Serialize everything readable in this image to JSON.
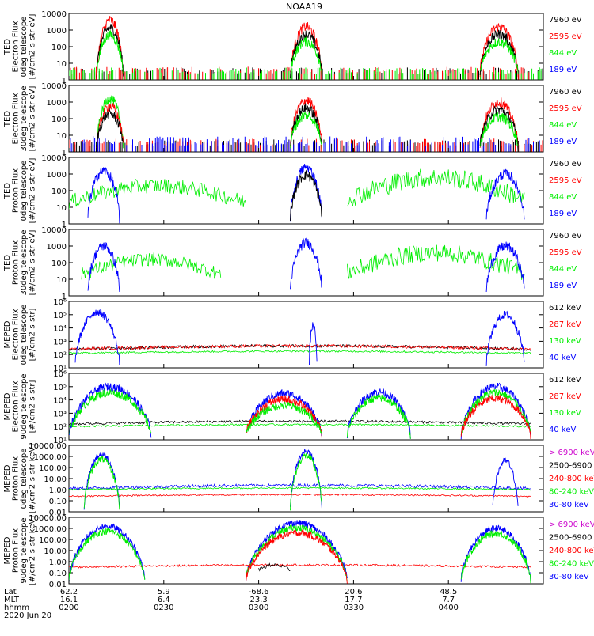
{
  "page": {
    "title": "NOAA19"
  },
  "colors": {
    "black": "#000000",
    "red": "#ff0000",
    "green": "#00ee00",
    "blue": "#0000ff",
    "magenta": "#cc00cc"
  },
  "chart_data": [
    {
      "type": "line",
      "ylabel": [
        "TED",
        "Electron Flux",
        "0deg telescope",
        "[#/cm2-s-str-eV]"
      ],
      "y_scale": "log",
      "ylim": [
        1,
        10000
      ],
      "y_ticks": [
        "10000",
        "1000",
        "100",
        "10",
        "1"
      ],
      "legend": [
        {
          "label": "7960 eV",
          "color": "black"
        },
        {
          "label": "2595 eV",
          "color": "red"
        },
        {
          "label": "844 eV",
          "color": "green"
        },
        {
          "label": "189 eV",
          "color": "blue"
        }
      ],
      "bursts": [
        {
          "t": [
            2.2,
            4.3
          ],
          "peak": 3.6,
          "series": [
            "red",
            "black",
            "green"
          ]
        },
        {
          "t": [
            17.5,
            20.0
          ],
          "peak": 3.2,
          "series": [
            "red",
            "black",
            "green"
          ]
        },
        {
          "t": [
            32.5,
            35.5
          ],
          "peak": 3.2,
          "series": [
            "red",
            "black",
            "green"
          ]
        }
      ],
      "noise": [
        {
          "series": "black",
          "level": 0.8
        },
        {
          "series": "red",
          "level": 0.9
        },
        {
          "series": "green",
          "level": 0.8
        }
      ]
    },
    {
      "type": "line",
      "ylabel": [
        "TED",
        "Electron Flux",
        "30deg telescope",
        "[#/cm2-s-str-eV]"
      ],
      "y_scale": "log",
      "ylim": [
        1,
        10000
      ],
      "y_ticks": [
        "10000",
        "1000",
        "100",
        "10",
        "1"
      ],
      "legend": [
        {
          "label": "7960 eV",
          "color": "black"
        },
        {
          "label": "2595 eV",
          "color": "red"
        },
        {
          "label": "844 eV",
          "color": "green"
        },
        {
          "label": "189 eV",
          "color": "blue"
        }
      ],
      "bursts": [
        {
          "t": [
            2.2,
            4.3
          ],
          "peak": 3.2,
          "series": [
            "green",
            "red",
            "black"
          ]
        },
        {
          "t": [
            17.5,
            20.0
          ],
          "peak": 3.1,
          "series": [
            "red",
            "black",
            "green"
          ]
        },
        {
          "t": [
            32.5,
            35.5
          ],
          "peak": 3.0,
          "series": [
            "red",
            "black",
            "green"
          ]
        }
      ],
      "noise": [
        {
          "series": "black",
          "level": 0.8
        },
        {
          "series": "red",
          "level": 0.9
        },
        {
          "series": "blue",
          "level": 1.2
        }
      ]
    },
    {
      "type": "line",
      "ylabel": [
        "TED",
        "Proton Flux",
        "0deg telescope",
        "[#/cm2-s-str-eV]"
      ],
      "y_scale": "log",
      "ylim": [
        1,
        10000
      ],
      "y_ticks": [
        "10000",
        "1000",
        "100",
        "10",
        "1"
      ],
      "legend": [
        {
          "label": "7960 eV",
          "color": "black"
        },
        {
          "label": "2595 eV",
          "color": "red"
        },
        {
          "label": "844 eV",
          "color": "green"
        },
        {
          "label": "189 eV",
          "color": "blue"
        }
      ],
      "bursts": [
        {
          "t": [
            1.5,
            4.0
          ],
          "peak": 3.2,
          "series": [
            "blue"
          ]
        },
        {
          "t": [
            17.5,
            20.0
          ],
          "peak": 3.4,
          "series": [
            "blue",
            "black"
          ]
        },
        {
          "t": [
            33.0,
            36.0
          ],
          "peak": 3.0,
          "series": [
            "blue"
          ]
        }
      ],
      "bands": [
        {
          "series": "green",
          "t": [
            0.0,
            14.0
          ],
          "base": 1.3,
          "amp": 1.0
        },
        {
          "series": "green",
          "t": [
            22.0,
            36.0
          ],
          "base": 1.5,
          "amp": 1.3
        }
      ]
    },
    {
      "type": "line",
      "ylabel": [
        "TED",
        "Proton Flux",
        "30deg telescope",
        "[#/cm2-s-str-eV]"
      ],
      "y_scale": "log",
      "ylim": [
        1,
        10000
      ],
      "y_ticks": [
        "10000",
        "1000",
        "100",
        "10",
        "1"
      ],
      "legend": [
        {
          "label": "7960 eV",
          "color": "black"
        },
        {
          "label": "2595 eV",
          "color": "red"
        },
        {
          "label": "844 eV",
          "color": "green"
        },
        {
          "label": "189 eV",
          "color": "blue"
        }
      ],
      "bursts": [
        {
          "t": [
            1.5,
            4.0
          ],
          "peak": 3.0,
          "series": [
            "blue"
          ]
        },
        {
          "t": [
            17.5,
            20.0
          ],
          "peak": 3.2,
          "series": [
            "blue"
          ]
        },
        {
          "t": [
            33.0,
            36.0
          ],
          "peak": 3.0,
          "series": [
            "blue"
          ]
        }
      ],
      "bands": [
        {
          "series": "green",
          "t": [
            1.0,
            12.0
          ],
          "base": 1.3,
          "amp": 0.9
        },
        {
          "series": "green",
          "t": [
            22.0,
            36.0
          ],
          "base": 1.4,
          "amp": 1.2
        }
      ]
    },
    {
      "type": "line",
      "ylabel": [
        "MEPED",
        "Electron Flux",
        "0deg telescope",
        "[#/cm2-s-str]"
      ],
      "y_scale": "log",
      "ylim": [
        10,
        1000000
      ],
      "y_ticks": [
        "10⁶",
        "10⁵",
        "10⁴",
        "10³",
        "10²",
        "10¹"
      ],
      "legend": [
        {
          "label": "612 keV",
          "color": "black"
        },
        {
          "label": "287 keV",
          "color": "red"
        },
        {
          "label": "130 keV",
          "color": "green"
        },
        {
          "label": "40 keV",
          "color": "blue"
        }
      ],
      "bursts": [
        {
          "t": [
            0.5,
            4.0
          ],
          "peak": 5.2,
          "series": [
            "blue"
          ]
        },
        {
          "t": [
            19.0,
            19.6
          ],
          "peak": 4.2,
          "series": [
            "blue"
          ]
        },
        {
          "t": [
            33.0,
            36.0
          ],
          "peak": 5.0,
          "series": [
            "blue"
          ]
        }
      ],
      "bands": [
        {
          "series": "black",
          "t": [
            0.0,
            36.5
          ],
          "base": 2.4,
          "amp": 0.25
        },
        {
          "series": "red",
          "t": [
            0.0,
            36.5
          ],
          "base": 2.4,
          "amp": 0.25
        },
        {
          "series": "green",
          "t": [
            0.0,
            36.5
          ],
          "base": 2.1,
          "amp": 0.15
        }
      ]
    },
    {
      "type": "line",
      "ylabel": [
        "MEPED",
        "Electron Flux",
        "90deg telescope",
        "[#/cm2-s-str]"
      ],
      "y_scale": "log",
      "ylim": [
        10,
        1000000
      ],
      "y_ticks": [
        "10⁶",
        "10⁵",
        "10⁴",
        "10³",
        "10²",
        "10¹"
      ],
      "legend": [
        {
          "label": "612 keV",
          "color": "black"
        },
        {
          "label": "287 keV",
          "color": "red"
        },
        {
          "label": "130 keV",
          "color": "green"
        },
        {
          "label": "40 keV",
          "color": "blue"
        }
      ],
      "bursts": [
        {
          "t": [
            0.0,
            6.5
          ],
          "peak": 5.0,
          "series": [
            "blue",
            "green"
          ]
        },
        {
          "t": [
            14.0,
            20.0
          ],
          "peak": 4.5,
          "series": [
            "blue",
            "red",
            "green"
          ]
        },
        {
          "t": [
            22.0,
            27.0
          ],
          "peak": 4.6,
          "series": [
            "blue",
            "green"
          ]
        },
        {
          "t": [
            31.0,
            36.5
          ],
          "peak": 5.0,
          "series": [
            "blue",
            "green",
            "red"
          ]
        }
      ],
      "bands": [
        {
          "series": "black",
          "t": [
            0.0,
            36.5
          ],
          "base": 2.2,
          "amp": 0.2
        },
        {
          "series": "green",
          "t": [
            0.0,
            36.5
          ],
          "base": 2.0,
          "amp": 0.15
        }
      ]
    },
    {
      "type": "line",
      "ylabel": [
        "MEPED",
        "Proton Flux",
        "0deg telescope",
        "[#/cm2-s-str-keV]"
      ],
      "y_scale": "log",
      "ylim": [
        0.01,
        10000
      ],
      "y_ticks": [
        "10000.00",
        "1000.00",
        "100.00",
        "10.00",
        "1.00",
        "0.10",
        "0.01"
      ],
      "legend": [
        {
          "label": "> 6900 keV",
          "color": "magenta"
        },
        {
          "label": "2500-6900",
          "color": "black"
        },
        {
          "label": "240-800 keV",
          "color": "red"
        },
        {
          "label": "80-240 keV",
          "color": "green"
        },
        {
          "label": "30-80 keV",
          "color": "blue"
        }
      ],
      "bursts": [
        {
          "t": [
            1.2,
            4.0
          ],
          "peak": 3.2,
          "series": [
            "blue",
            "green"
          ]
        },
        {
          "t": [
            17.5,
            20.0
          ],
          "peak": 3.5,
          "series": [
            "blue",
            "green"
          ]
        },
        {
          "t": [
            33.5,
            35.5
          ],
          "peak": 2.6,
          "series": [
            "blue"
          ]
        }
      ],
      "bands": [
        {
          "series": "blue",
          "t": [
            0.0,
            36.5
          ],
          "base": 0.1,
          "amp": 0.3
        },
        {
          "series": "green",
          "t": [
            0.0,
            36.5
          ],
          "base": 0.0,
          "amp": 0.15
        },
        {
          "series": "red",
          "t": [
            0.0,
            36.5
          ],
          "base": -0.6,
          "amp": 0.15
        }
      ]
    },
    {
      "type": "line",
      "ylabel": [
        "MEPED",
        "Proton Flux",
        "90deg telescope",
        "[#/cm2-s-str-keV]"
      ],
      "y_scale": "log",
      "ylim": [
        0.01,
        10000
      ],
      "y_ticks": [
        "10000.00",
        "1000.00",
        "100.00",
        "10.00",
        "1.00",
        "0.10",
        "0.01"
      ],
      "legend": [
        {
          "label": "> 6900 keV",
          "color": "magenta"
        },
        {
          "label": "2500-6900",
          "color": "black"
        },
        {
          "label": "240-800 keV",
          "color": "red"
        },
        {
          "label": "80-240 keV",
          "color": "green"
        },
        {
          "label": "30-80 keV",
          "color": "blue"
        }
      ],
      "bursts": [
        {
          "t": [
            0.0,
            6.0
          ],
          "peak": 3.2,
          "series": [
            "blue",
            "green"
          ]
        },
        {
          "t": [
            14.0,
            22.0
          ],
          "peak": 3.5,
          "series": [
            "blue",
            "green",
            "red"
          ]
        },
        {
          "t": [
            31.0,
            36.5
          ],
          "peak": 3.0,
          "series": [
            "blue",
            "green"
          ]
        }
      ],
      "bands": [
        {
          "series": "red",
          "t": [
            0.0,
            36.5
          ],
          "base": -0.5,
          "amp": 0.2
        },
        {
          "series": "black",
          "t": [
            15.0,
            17.5
          ],
          "base": -0.7,
          "amp": 0.4
        }
      ]
    }
  ],
  "x_axis": {
    "range_minutes": [
      0,
      37.5
    ],
    "row_labels": [
      "Lat",
      "MLT",
      "hhmm",
      "2020 Jun 20"
    ],
    "ticks": [
      {
        "t": 0,
        "lat": "62.2",
        "mlt": "16.1",
        "hhmm": "0200"
      },
      {
        "t": 7.5,
        "lat": "5.9",
        "mlt": "6.4",
        "hhmm": "0230"
      },
      {
        "t": 15.0,
        "lat": "-68.6",
        "mlt": "23.3",
        "hhmm": "0300"
      },
      {
        "t": 22.5,
        "lat": "20.6",
        "mlt": "17.7",
        "hhmm": "0330"
      },
      {
        "t": 30.0,
        "lat": "48.5",
        "mlt": "7.7",
        "hhmm": "0400"
      }
    ]
  }
}
